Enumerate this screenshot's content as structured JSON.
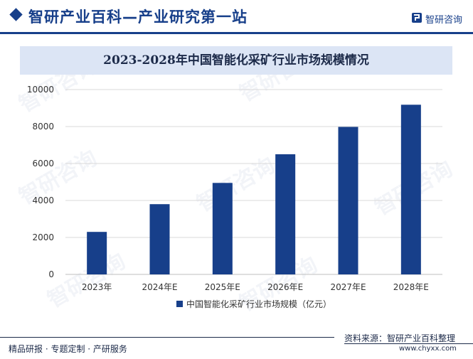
{
  "header": {
    "title": "智研产业百科—产业研究第一站",
    "brand": "智研咨询"
  },
  "watermark": "智研咨询",
  "footer": {
    "left": "精品研报 · 专题定制 · 产研服务",
    "source": "资料来源：智研产业百科整理",
    "site": "www.chyxx.com"
  },
  "colors": {
    "bar": "#173f8a",
    "accent": "#173f8a",
    "title_band": "#dce5f5"
  },
  "chart_data": {
    "type": "bar",
    "title": "2023-2028年中国智能化采矿行业市场规模情况",
    "categories": [
      "2023年",
      "2024年E",
      "2025年E",
      "2026年E",
      "2027年E",
      "2028年E"
    ],
    "series": [
      {
        "name": "中国智能化采矿行业市场规模（亿元）",
        "values": [
          2300,
          3800,
          4950,
          6500,
          7980,
          9180
        ]
      }
    ],
    "yticks": [
      0,
      2000,
      4000,
      6000,
      8000,
      10000
    ],
    "ylim": [
      0,
      10000
    ],
    "grid": true,
    "legend": "bottom"
  }
}
